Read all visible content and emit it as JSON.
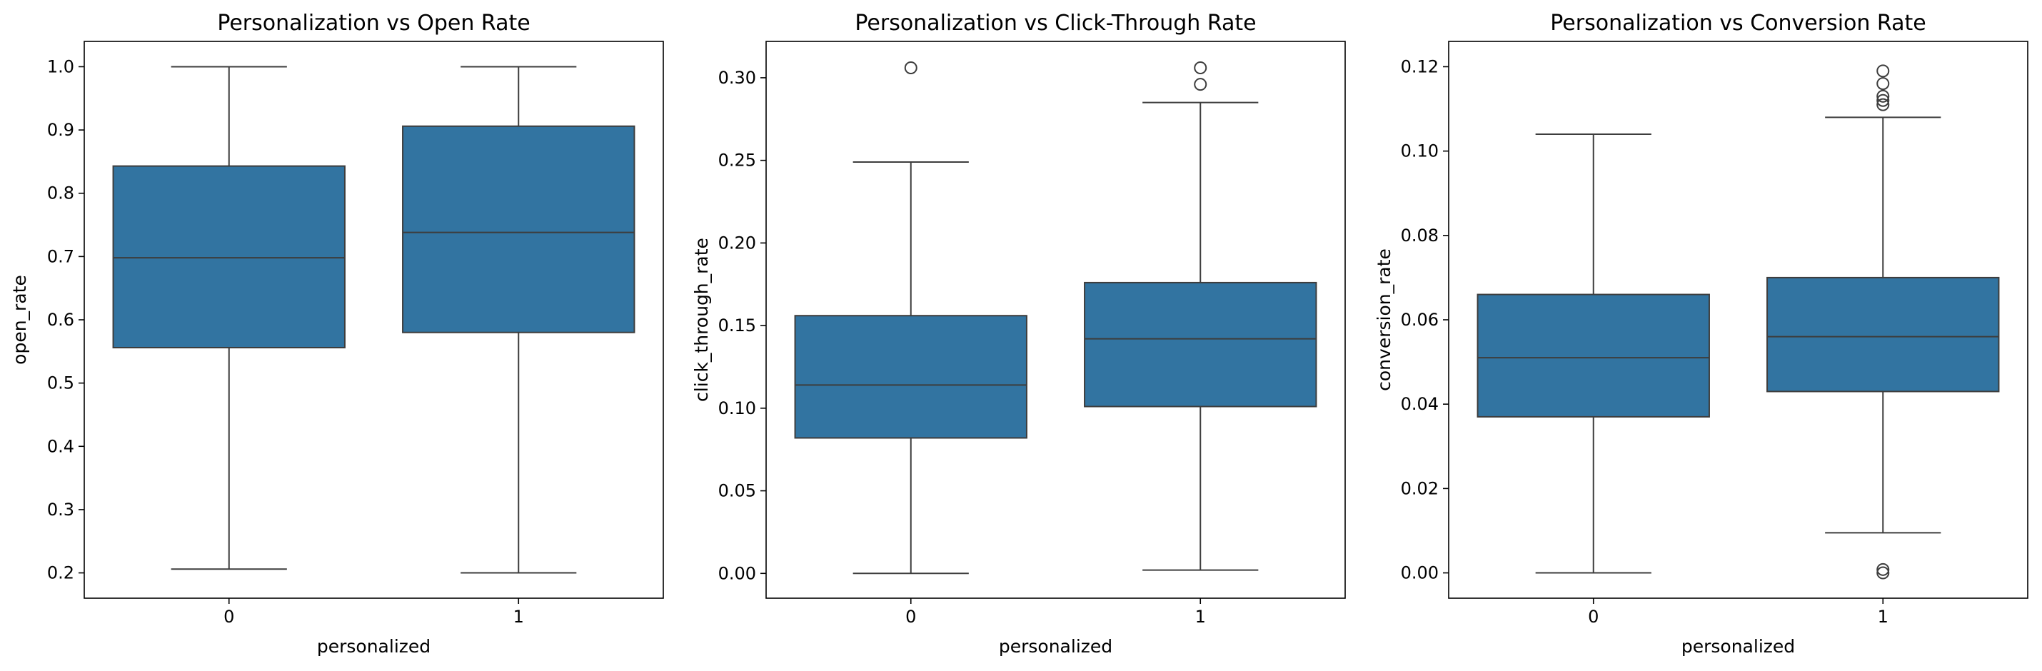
{
  "colors": {
    "box_fill": "#3274a1",
    "line": "#3d3d3d",
    "frame": "#000000",
    "background": "#ffffff"
  },
  "chart_data": [
    {
      "type": "box",
      "title": "Personalization vs Open Rate",
      "xlabel": "personalized",
      "ylabel": "open_rate",
      "categories": [
        "0",
        "1"
      ],
      "ylim": [
        0.16,
        1.04
      ],
      "yticks": [
        0.2,
        0.3,
        0.4,
        0.5,
        0.6,
        0.7,
        0.8,
        0.9,
        1.0
      ],
      "ytick_labels": [
        "0.2",
        "0.3",
        "0.4",
        "0.5",
        "0.6",
        "0.7",
        "0.8",
        "0.9",
        "1.0"
      ],
      "boxes": [
        {
          "category": "0",
          "whisker_low": 0.206,
          "q1": 0.556,
          "median": 0.698,
          "q3": 0.843,
          "whisker_high": 1.0,
          "outliers": []
        },
        {
          "category": "1",
          "whisker_low": 0.2,
          "q1": 0.58,
          "median": 0.738,
          "q3": 0.906,
          "whisker_high": 1.0,
          "outliers": []
        }
      ]
    },
    {
      "type": "box",
      "title": "Personalization vs Click-Through Rate",
      "xlabel": "personalized",
      "ylabel": "click_through_rate",
      "categories": [
        "0",
        "1"
      ],
      "ylim": [
        -0.015,
        0.322
      ],
      "yticks": [
        0.0,
        0.05,
        0.1,
        0.15,
        0.2,
        0.25,
        0.3
      ],
      "ytick_labels": [
        "0.00",
        "0.05",
        "0.10",
        "0.15",
        "0.20",
        "0.25",
        "0.30"
      ],
      "boxes": [
        {
          "category": "0",
          "whisker_low": 0.0,
          "q1": 0.082,
          "median": 0.114,
          "q3": 0.156,
          "whisker_high": 0.249,
          "outliers": [
            0.306
          ]
        },
        {
          "category": "1",
          "whisker_low": 0.002,
          "q1": 0.101,
          "median": 0.142,
          "q3": 0.176,
          "whisker_high": 0.285,
          "outliers": [
            0.296,
            0.306
          ]
        }
      ]
    },
    {
      "type": "box",
      "title": "Personalization vs Conversion Rate",
      "xlabel": "personalized",
      "ylabel": "conversion_rate",
      "categories": [
        "0",
        "1"
      ],
      "ylim": [
        -0.006,
        0.126
      ],
      "yticks": [
        0.0,
        0.02,
        0.04,
        0.06,
        0.08,
        0.1,
        0.12
      ],
      "ytick_labels": [
        "0.00",
        "0.02",
        "0.04",
        "0.06",
        "0.08",
        "0.10",
        "0.12"
      ],
      "boxes": [
        {
          "category": "0",
          "whisker_low": 0.0,
          "q1": 0.037,
          "median": 0.051,
          "q3": 0.066,
          "whisker_high": 0.104,
          "outliers": []
        },
        {
          "category": "1",
          "whisker_low": 0.0095,
          "q1": 0.043,
          "median": 0.056,
          "q3": 0.07,
          "whisker_high": 0.108,
          "outliers": [
            0.0,
            0.0008,
            0.111,
            0.112,
            0.113,
            0.116,
            0.119
          ]
        }
      ]
    }
  ]
}
